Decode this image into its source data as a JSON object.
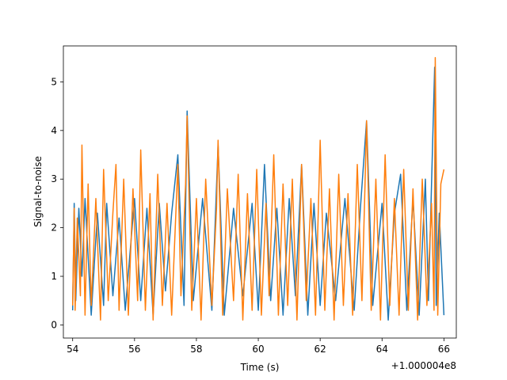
{
  "chart_data": {
    "type": "line",
    "title": "",
    "xlabel": "Time (s)",
    "ylabel": "Signal-to-noise",
    "x_offset_label": "+1.000004e8",
    "xlim": [
      53.7,
      66.4
    ],
    "ylim": [
      -0.27,
      5.74
    ],
    "x_ticks": [
      54,
      56,
      58,
      60,
      62,
      64,
      66
    ],
    "x_tick_labels": [
      "54",
      "56",
      "58",
      "60",
      "62",
      "64",
      "66"
    ],
    "y_ticks": [
      0,
      1,
      2,
      3,
      4,
      5
    ],
    "y_tick_labels": [
      "0",
      "1",
      "2",
      "3",
      "4",
      "5"
    ],
    "grid": false,
    "legend": "none",
    "series": [
      {
        "color": "#1f77b4",
        "x": [
          54.0,
          54.05,
          54.1,
          54.2,
          54.3,
          54.4,
          54.6,
          54.8,
          55.0,
          55.1,
          55.3,
          55.5,
          55.7,
          56.0,
          56.2,
          56.4,
          56.6,
          56.8,
          57.0,
          57.2,
          57.4,
          57.6,
          57.7,
          57.9,
          58.2,
          58.5,
          58.7,
          58.9,
          59.2,
          59.5,
          59.8,
          60.0,
          60.2,
          60.4,
          60.6,
          60.8,
          61.0,
          61.2,
          61.4,
          61.6,
          61.8,
          62.0,
          62.2,
          62.5,
          62.8,
          63.1,
          63.3,
          63.5,
          63.7,
          64.0,
          64.2,
          64.4,
          64.6,
          64.8,
          65.0,
          65.2,
          65.4,
          65.5,
          65.7,
          65.75,
          65.85,
          66.0
        ],
        "y": [
          0.3,
          2.5,
          0.5,
          2.4,
          1.0,
          2.6,
          0.2,
          2.3,
          0.4,
          2.5,
          0.6,
          2.2,
          0.3,
          2.6,
          0.5,
          2.4,
          0.2,
          2.5,
          0.7,
          2.3,
          3.5,
          0.4,
          4.4,
          0.5,
          2.6,
          0.3,
          3.7,
          0.2,
          2.4,
          0.6,
          2.5,
          0.3,
          3.3,
          0.5,
          2.4,
          0.2,
          2.6,
          0.6,
          3.3,
          0.2,
          2.5,
          0.4,
          2.3,
          0.5,
          2.6,
          0.3,
          2.4,
          4.2,
          0.4,
          2.5,
          0.1,
          2.3,
          3.1,
          0.3,
          2.6,
          0.2,
          3.0,
          0.5,
          5.3,
          0.4,
          2.3,
          0.2
        ]
      },
      {
        "color": "#ff7f0e",
        "x": [
          54.0,
          54.05,
          54.08,
          54.15,
          54.25,
          54.3,
          54.4,
          54.5,
          54.6,
          54.75,
          54.9,
          55.0,
          55.15,
          55.3,
          55.4,
          55.5,
          55.65,
          55.8,
          55.95,
          56.1,
          56.2,
          56.35,
          56.5,
          56.6,
          56.75,
          56.9,
          57.05,
          57.2,
          57.4,
          57.5,
          57.65,
          57.7,
          57.85,
          58.0,
          58.15,
          58.3,
          58.5,
          58.65,
          58.7,
          58.85,
          59.0,
          59.2,
          59.35,
          59.5,
          59.65,
          59.8,
          59.95,
          60.1,
          60.25,
          60.35,
          60.5,
          60.65,
          60.8,
          60.95,
          61.1,
          61.25,
          61.4,
          61.55,
          61.7,
          61.85,
          62.0,
          62.15,
          62.3,
          62.45,
          62.6,
          62.75,
          62.9,
          63.05,
          63.2,
          63.35,
          63.45,
          63.5,
          63.65,
          63.8,
          63.95,
          64.1,
          64.25,
          64.4,
          64.55,
          64.7,
          64.85,
          65.0,
          65.15,
          65.3,
          65.45,
          65.6,
          65.68,
          65.72,
          65.8,
          65.9,
          66.0
        ],
        "y": [
          0.4,
          2.4,
          0.3,
          2.2,
          0.6,
          3.7,
          0.2,
          2.9,
          0.4,
          2.6,
          0.1,
          3.2,
          0.5,
          2.3,
          3.3,
          0.3,
          3.0,
          0.2,
          2.8,
          0.5,
          3.6,
          0.3,
          2.7,
          0.1,
          3.1,
          0.4,
          2.5,
          0.2,
          3.3,
          0.6,
          2.9,
          4.3,
          0.3,
          2.6,
          0.1,
          3.0,
          0.4,
          2.4,
          3.8,
          0.2,
          2.8,
          0.5,
          3.1,
          0.1,
          2.7,
          0.3,
          3.2,
          0.2,
          2.5,
          0.6,
          3.5,
          0.2,
          2.9,
          0.4,
          3.0,
          0.1,
          3.3,
          0.5,
          2.6,
          0.2,
          3.8,
          0.3,
          2.8,
          0.1,
          3.1,
          0.4,
          2.7,
          0.2,
          3.3,
          0.5,
          2.9,
          4.2,
          0.3,
          3.0,
          0.1,
          3.5,
          0.4,
          2.6,
          0.2,
          3.2,
          0.3,
          2.8,
          0.1,
          3.0,
          0.4,
          2.5,
          0.3,
          5.5,
          0.2,
          2.9,
          3.2
        ]
      }
    ]
  }
}
